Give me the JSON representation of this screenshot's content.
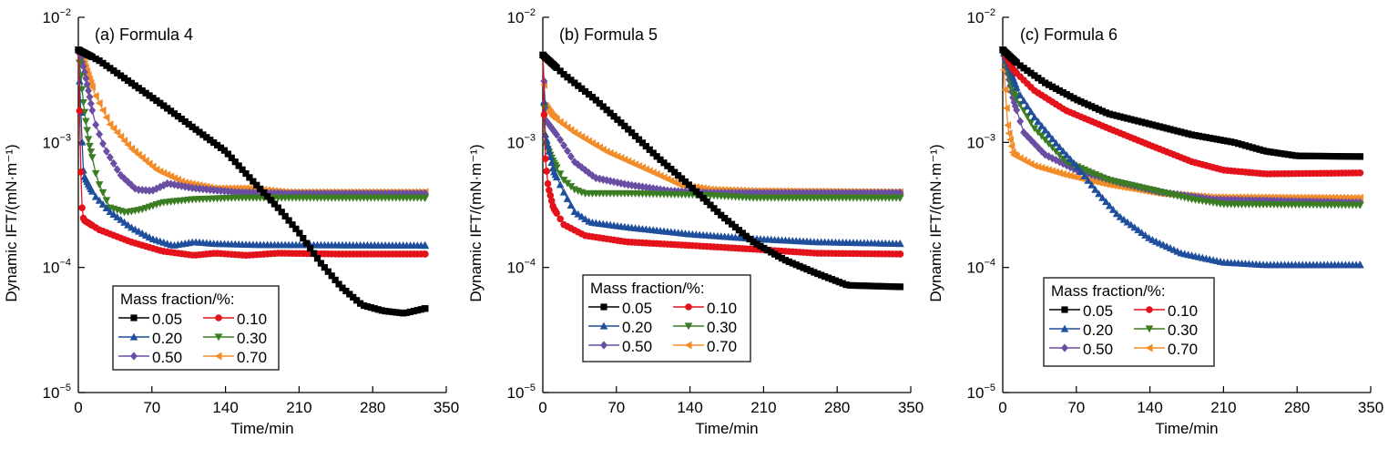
{
  "figure": {
    "legend_title": "Mass fraction/%:"
  },
  "chart_data": [
    {
      "type": "line",
      "title": "(a) Formula 4",
      "xlabel": "Time/min",
      "ylabel": "Dynamic IFT/(mN·m⁻¹)",
      "xlim": [
        0,
        350
      ],
      "ylim": [
        1e-05,
        0.01
      ],
      "yscale": "log",
      "xticks": [
        "0",
        "70",
        "140",
        "210",
        "280",
        "350"
      ],
      "yticks": [
        {
          "base": "10",
          "exp": "−2"
        },
        {
          "base": "10",
          "exp": "−3"
        },
        {
          "base": "10",
          "exp": "−4"
        },
        {
          "base": "10",
          "exp": "−5"
        }
      ],
      "grid": false,
      "legend_position": "lower-left",
      "series": [
        {
          "name": "0.05",
          "color": "#000000",
          "marker": "square",
          "x": [
            0,
            20,
            50,
            80,
            110,
            140,
            165,
            190,
            210,
            230,
            250,
            270,
            290,
            310,
            330
          ],
          "y": [
            0.0055,
            0.0045,
            0.003,
            0.002,
            0.0013,
            0.00085,
            0.0005,
            0.0003,
            0.00019,
            0.00011,
            7e-05,
            5e-05,
            4.5e-05,
            4.3e-05,
            4.7e-05
          ]
        },
        {
          "name": "0.10",
          "color": "#e3121b",
          "marker": "circle",
          "x": [
            0,
            3,
            5,
            20,
            50,
            80,
            110,
            130,
            160,
            190,
            250,
            330
          ],
          "y": [
            0.0055,
            0.00033,
            0.00024,
            0.0002,
            0.00016,
            0.000135,
            0.000125,
            0.00013,
            0.000125,
            0.00013,
            0.000128,
            0.000128
          ]
        },
        {
          "name": "0.20",
          "color": "#1f4e9c",
          "marker": "triangle-up",
          "x": [
            0,
            3,
            5,
            15,
            30,
            50,
            70,
            90,
            110,
            130,
            170,
            330
          ],
          "y": [
            0.0055,
            0.0013,
            0.00055,
            0.00038,
            0.00028,
            0.00021,
            0.00017,
            0.00015,
            0.00016,
            0.000155,
            0.000152,
            0.00015
          ]
        },
        {
          "name": "0.30",
          "color": "#3a7d22",
          "marker": "triangle-down",
          "x": [
            0,
            5,
            10,
            18,
            30,
            45,
            60,
            80,
            110,
            150,
            200,
            330
          ],
          "y": [
            0.0055,
            0.002,
            0.001,
            0.0005,
            0.0003,
            0.000275,
            0.00029,
            0.00033,
            0.00035,
            0.00036,
            0.00036,
            0.00036
          ]
        },
        {
          "name": "0.50",
          "color": "#6a4ea3",
          "marker": "diamond",
          "x": [
            0,
            5,
            10,
            15,
            25,
            40,
            55,
            70,
            85,
            110,
            150,
            200,
            330
          ],
          "y": [
            0.0055,
            0.004,
            0.0025,
            0.0015,
            0.0009,
            0.00055,
            0.00042,
            0.00041,
            0.00047,
            0.00043,
            0.0004,
            0.00039,
            0.00039
          ]
        },
        {
          "name": "0.70",
          "color": "#f28c28",
          "marker": "triangle-left",
          "x": [
            0,
            5,
            15,
            30,
            50,
            75,
            100,
            130,
            160,
            200,
            330
          ],
          "y": [
            0.0055,
            0.0045,
            0.0025,
            0.0014,
            0.0009,
            0.0006,
            0.00048,
            0.00043,
            0.00043,
            0.0004,
            0.0004
          ]
        }
      ]
    },
    {
      "type": "line",
      "title": "(b) Formula 5",
      "xlabel": "Time/min",
      "ylabel": "Dynamic IFT/(mN·m⁻¹)",
      "xlim": [
        0,
        350
      ],
      "ylim": [
        1e-05,
        0.01
      ],
      "yscale": "log",
      "xticks": [
        "0",
        "70",
        "140",
        "210",
        "280",
        "350"
      ],
      "yticks": [
        {
          "base": "10",
          "exp": "−2"
        },
        {
          "base": "10",
          "exp": "−3"
        },
        {
          "base": "10",
          "exp": "−4"
        },
        {
          "base": "10",
          "exp": "−5"
        }
      ],
      "grid": false,
      "legend_position": "lower-left",
      "series": [
        {
          "name": "0.05",
          "color": "#000000",
          "marker": "square",
          "x": [
            0,
            20,
            50,
            80,
            110,
            140,
            170,
            200,
            230,
            260,
            290,
            340
          ],
          "y": [
            0.005,
            0.0035,
            0.0022,
            0.0013,
            0.00075,
            0.00045,
            0.00026,
            0.00016,
            0.000115,
            9e-05,
            7.2e-05,
            7e-05
          ]
        },
        {
          "name": "0.10",
          "color": "#e3121b",
          "marker": "circle",
          "x": [
            0,
            2,
            5,
            10,
            20,
            40,
            80,
            140,
            200,
            260,
            340
          ],
          "y": [
            0.005,
            0.0008,
            0.00045,
            0.0003,
            0.00022,
            0.00018,
            0.00016,
            0.00015,
            0.00014,
            0.00013,
            0.000128
          ]
        },
        {
          "name": "0.20",
          "color": "#1f4e9c",
          "marker": "triangle-up",
          "x": [
            0,
            2,
            10,
            20,
            30,
            45,
            80,
            140,
            200,
            260,
            340
          ],
          "y": [
            0.005,
            0.0012,
            0.0006,
            0.0004,
            0.00028,
            0.00023,
            0.00021,
            0.000185,
            0.00017,
            0.00016,
            0.000155
          ]
        },
        {
          "name": "0.30",
          "color": "#3a7d22",
          "marker": "triangle-down",
          "x": [
            0,
            2,
            10,
            20,
            30,
            40,
            80,
            150,
            200,
            340
          ],
          "y": [
            0.005,
            0.001,
            0.0007,
            0.0005,
            0.00042,
            0.00039,
            0.00039,
            0.00038,
            0.00036,
            0.00036
          ]
        },
        {
          "name": "0.50",
          "color": "#6a4ea3",
          "marker": "diamond",
          "x": [
            0,
            3,
            15,
            30,
            50,
            80,
            120,
            160,
            340
          ],
          "y": [
            0.005,
            0.0015,
            0.0011,
            0.0007,
            0.00052,
            0.00046,
            0.00041,
            0.000395,
            0.000395
          ]
        },
        {
          "name": "0.70",
          "color": "#f28c28",
          "marker": "triangle-left",
          "x": [
            0,
            2,
            10,
            30,
            60,
            100,
            130,
            160,
            200,
            340
          ],
          "y": [
            0.005,
            0.002,
            0.0016,
            0.0012,
            0.00085,
            0.0006,
            0.00046,
            0.00042,
            0.00041,
            0.0004
          ]
        }
      ]
    },
    {
      "type": "line",
      "title": "(c) Formula 6",
      "xlabel": "Time/min",
      "ylabel": "Dynamic IFT/(mN·m⁻¹)",
      "xlim": [
        0,
        350
      ],
      "ylim": [
        1e-05,
        0.01
      ],
      "yscale": "log",
      "xticks": [
        "0",
        "70",
        "140",
        "210",
        "280",
        "350"
      ],
      "yticks": [
        {
          "base": "10",
          "exp": "−2"
        },
        {
          "base": "10",
          "exp": "−3"
        },
        {
          "base": "10",
          "exp": "−4"
        },
        {
          "base": "10",
          "exp": "−5"
        }
      ],
      "grid": false,
      "legend_position": "lower-left",
      "series": [
        {
          "name": "0.05",
          "color": "#000000",
          "marker": "square",
          "x": [
            0,
            15,
            40,
            70,
            100,
            140,
            180,
            220,
            250,
            280,
            340
          ],
          "y": [
            0.0055,
            0.0042,
            0.003,
            0.0022,
            0.0017,
            0.0014,
            0.00115,
            0.001,
            0.00085,
            0.00078,
            0.00077
          ]
        },
        {
          "name": "0.10",
          "color": "#e3121b",
          "marker": "circle",
          "x": [
            0,
            10,
            30,
            60,
            100,
            140,
            180,
            210,
            250,
            340
          ],
          "y": [
            0.0055,
            0.0038,
            0.0026,
            0.0018,
            0.0013,
            0.00095,
            0.0007,
            0.0006,
            0.00056,
            0.00057
          ]
        },
        {
          "name": "0.20",
          "color": "#1f4e9c",
          "marker": "triangle-up",
          "x": [
            0,
            15,
            30,
            50,
            70,
            90,
            110,
            140,
            170,
            210,
            250,
            340
          ],
          "y": [
            0.0055,
            0.0025,
            0.0016,
            0.001,
            0.00065,
            0.0004,
            0.00026,
            0.00017,
            0.00013,
            0.00011,
            0.000105,
            0.000105
          ]
        },
        {
          "name": "0.30",
          "color": "#3a7d22",
          "marker": "triangle-down",
          "x": [
            0,
            10,
            30,
            60,
            100,
            140,
            180,
            210,
            340
          ],
          "y": [
            0.0055,
            0.0025,
            0.0013,
            0.0007,
            0.0005,
            0.00042,
            0.00035,
            0.00032,
            0.000315
          ]
        },
        {
          "name": "0.50",
          "color": "#6a4ea3",
          "marker": "diamond",
          "x": [
            0,
            10,
            20,
            40,
            70,
            110,
            150,
            200,
            340
          ],
          "y": [
            0.0055,
            0.0022,
            0.0012,
            0.0008,
            0.0006,
            0.00048,
            0.0004,
            0.00035,
            0.00033
          ]
        },
        {
          "name": "0.70",
          "color": "#f28c28",
          "marker": "triangle-left",
          "x": [
            0,
            3,
            5,
            10,
            30,
            60,
            100,
            150,
            200,
            340
          ],
          "y": [
            0.0055,
            0.0022,
            0.0013,
            0.0008,
            0.00065,
            0.00055,
            0.00046,
            0.00039,
            0.000365,
            0.00036
          ]
        }
      ]
    }
  ]
}
